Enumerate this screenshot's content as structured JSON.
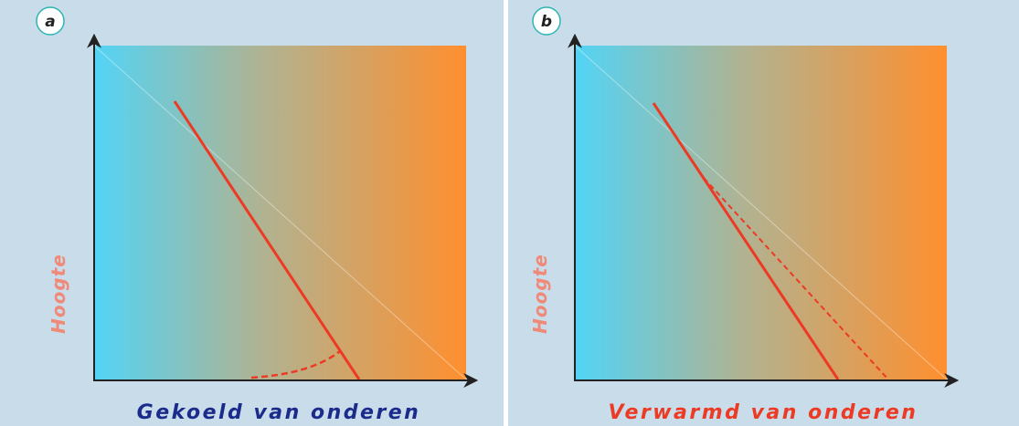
{
  "panels": [
    {
      "label": "a",
      "y_label": "Hoogte",
      "x_label": "Gekoeld van onderen"
    },
    {
      "label": "b",
      "y_label": "Hoogte",
      "x_label": "Verwarmd van onderen"
    }
  ]
}
